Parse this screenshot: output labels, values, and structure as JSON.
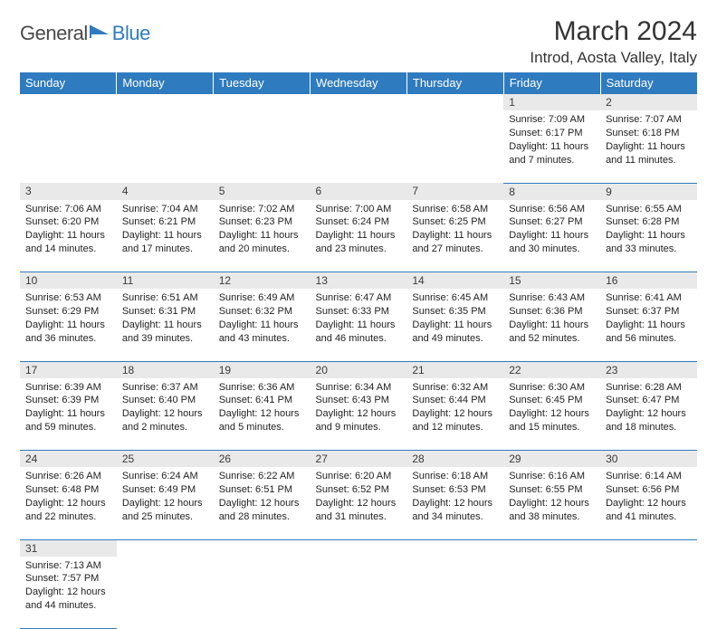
{
  "logo": {
    "part1": "General",
    "part2": "Blue"
  },
  "title": "March 2024",
  "location": "Introd, Aosta Valley, Italy",
  "colors": {
    "header_bg": "#2f7bbf",
    "header_fg": "#ffffff",
    "daynum_bg": "#e9e9e9",
    "rule": "#2f7bbf",
    "text": "#222222",
    "logo_gray": "#4a4a4a",
    "logo_blue": "#2f7bbf"
  },
  "fonts": {
    "title_pt": 30,
    "location_pt": 17,
    "header_pt": 13,
    "daynum_pt": 12,
    "body_pt": 11
  },
  "weekdays": [
    "Sunday",
    "Monday",
    "Tuesday",
    "Wednesday",
    "Thursday",
    "Friday",
    "Saturday"
  ],
  "weeks": [
    [
      null,
      null,
      null,
      null,
      null,
      {
        "n": "1",
        "sr": "Sunrise: 7:09 AM",
        "ss": "Sunset: 6:17 PM",
        "dl": "Daylight: 11 hours and 7 minutes."
      },
      {
        "n": "2",
        "sr": "Sunrise: 7:07 AM",
        "ss": "Sunset: 6:18 PM",
        "dl": "Daylight: 11 hours and 11 minutes."
      }
    ],
    [
      {
        "n": "3",
        "sr": "Sunrise: 7:06 AM",
        "ss": "Sunset: 6:20 PM",
        "dl": "Daylight: 11 hours and 14 minutes."
      },
      {
        "n": "4",
        "sr": "Sunrise: 7:04 AM",
        "ss": "Sunset: 6:21 PM",
        "dl": "Daylight: 11 hours and 17 minutes."
      },
      {
        "n": "5",
        "sr": "Sunrise: 7:02 AM",
        "ss": "Sunset: 6:23 PM",
        "dl": "Daylight: 11 hours and 20 minutes."
      },
      {
        "n": "6",
        "sr": "Sunrise: 7:00 AM",
        "ss": "Sunset: 6:24 PM",
        "dl": "Daylight: 11 hours and 23 minutes."
      },
      {
        "n": "7",
        "sr": "Sunrise: 6:58 AM",
        "ss": "Sunset: 6:25 PM",
        "dl": "Daylight: 11 hours and 27 minutes."
      },
      {
        "n": "8",
        "sr": "Sunrise: 6:56 AM",
        "ss": "Sunset: 6:27 PM",
        "dl": "Daylight: 11 hours and 30 minutes."
      },
      {
        "n": "9",
        "sr": "Sunrise: 6:55 AM",
        "ss": "Sunset: 6:28 PM",
        "dl": "Daylight: 11 hours and 33 minutes."
      }
    ],
    [
      {
        "n": "10",
        "sr": "Sunrise: 6:53 AM",
        "ss": "Sunset: 6:29 PM",
        "dl": "Daylight: 11 hours and 36 minutes."
      },
      {
        "n": "11",
        "sr": "Sunrise: 6:51 AM",
        "ss": "Sunset: 6:31 PM",
        "dl": "Daylight: 11 hours and 39 minutes."
      },
      {
        "n": "12",
        "sr": "Sunrise: 6:49 AM",
        "ss": "Sunset: 6:32 PM",
        "dl": "Daylight: 11 hours and 43 minutes."
      },
      {
        "n": "13",
        "sr": "Sunrise: 6:47 AM",
        "ss": "Sunset: 6:33 PM",
        "dl": "Daylight: 11 hours and 46 minutes."
      },
      {
        "n": "14",
        "sr": "Sunrise: 6:45 AM",
        "ss": "Sunset: 6:35 PM",
        "dl": "Daylight: 11 hours and 49 minutes."
      },
      {
        "n": "15",
        "sr": "Sunrise: 6:43 AM",
        "ss": "Sunset: 6:36 PM",
        "dl": "Daylight: 11 hours and 52 minutes."
      },
      {
        "n": "16",
        "sr": "Sunrise: 6:41 AM",
        "ss": "Sunset: 6:37 PM",
        "dl": "Daylight: 11 hours and 56 minutes."
      }
    ],
    [
      {
        "n": "17",
        "sr": "Sunrise: 6:39 AM",
        "ss": "Sunset: 6:39 PM",
        "dl": "Daylight: 11 hours and 59 minutes."
      },
      {
        "n": "18",
        "sr": "Sunrise: 6:37 AM",
        "ss": "Sunset: 6:40 PM",
        "dl": "Daylight: 12 hours and 2 minutes."
      },
      {
        "n": "19",
        "sr": "Sunrise: 6:36 AM",
        "ss": "Sunset: 6:41 PM",
        "dl": "Daylight: 12 hours and 5 minutes."
      },
      {
        "n": "20",
        "sr": "Sunrise: 6:34 AM",
        "ss": "Sunset: 6:43 PM",
        "dl": "Daylight: 12 hours and 9 minutes."
      },
      {
        "n": "21",
        "sr": "Sunrise: 6:32 AM",
        "ss": "Sunset: 6:44 PM",
        "dl": "Daylight: 12 hours and 12 minutes."
      },
      {
        "n": "22",
        "sr": "Sunrise: 6:30 AM",
        "ss": "Sunset: 6:45 PM",
        "dl": "Daylight: 12 hours and 15 minutes."
      },
      {
        "n": "23",
        "sr": "Sunrise: 6:28 AM",
        "ss": "Sunset: 6:47 PM",
        "dl": "Daylight: 12 hours and 18 minutes."
      }
    ],
    [
      {
        "n": "24",
        "sr": "Sunrise: 6:26 AM",
        "ss": "Sunset: 6:48 PM",
        "dl": "Daylight: 12 hours and 22 minutes."
      },
      {
        "n": "25",
        "sr": "Sunrise: 6:24 AM",
        "ss": "Sunset: 6:49 PM",
        "dl": "Daylight: 12 hours and 25 minutes."
      },
      {
        "n": "26",
        "sr": "Sunrise: 6:22 AM",
        "ss": "Sunset: 6:51 PM",
        "dl": "Daylight: 12 hours and 28 minutes."
      },
      {
        "n": "27",
        "sr": "Sunrise: 6:20 AM",
        "ss": "Sunset: 6:52 PM",
        "dl": "Daylight: 12 hours and 31 minutes."
      },
      {
        "n": "28",
        "sr": "Sunrise: 6:18 AM",
        "ss": "Sunset: 6:53 PM",
        "dl": "Daylight: 12 hours and 34 minutes."
      },
      {
        "n": "29",
        "sr": "Sunrise: 6:16 AM",
        "ss": "Sunset: 6:55 PM",
        "dl": "Daylight: 12 hours and 38 minutes."
      },
      {
        "n": "30",
        "sr": "Sunrise: 6:14 AM",
        "ss": "Sunset: 6:56 PM",
        "dl": "Daylight: 12 hours and 41 minutes."
      }
    ],
    [
      {
        "n": "31",
        "sr": "Sunrise: 7:13 AM",
        "ss": "Sunset: 7:57 PM",
        "dl": "Daylight: 12 hours and 44 minutes."
      },
      null,
      null,
      null,
      null,
      null,
      null
    ]
  ]
}
